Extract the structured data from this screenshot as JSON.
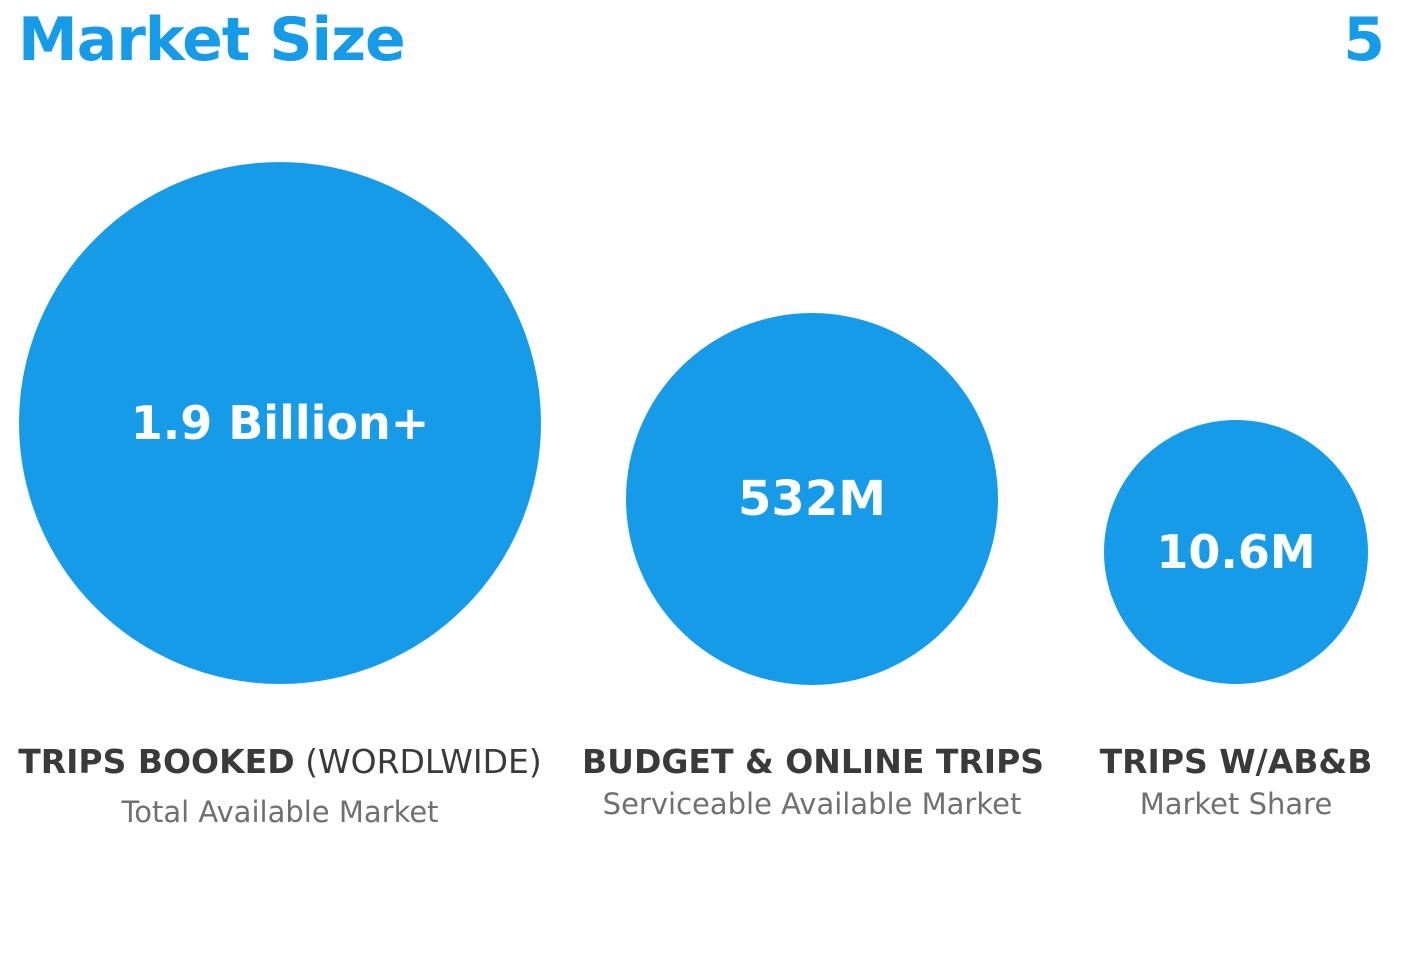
{
  "slide": {
    "title": "Market Size",
    "page_number": "5"
  },
  "markets": [
    {
      "value": "1.9 Billion+",
      "label_bold": "TRIPS BOOKED",
      "label_light": " (WORDLWIDE)",
      "sublabel": "Total Available Market"
    },
    {
      "value": "532M",
      "label_bold": "BUDGET & ONLINE TRIPS",
      "label_light": "",
      "sublabel": "Serviceable Available Market"
    },
    {
      "value": "10.6M",
      "label_bold": "TRIPS W/AB&B",
      "label_light": "",
      "sublabel": "Market Share"
    }
  ],
  "colors": {
    "accent": "#169be9",
    "label_dark": "#3a3a3a",
    "label_gray": "#707070"
  }
}
